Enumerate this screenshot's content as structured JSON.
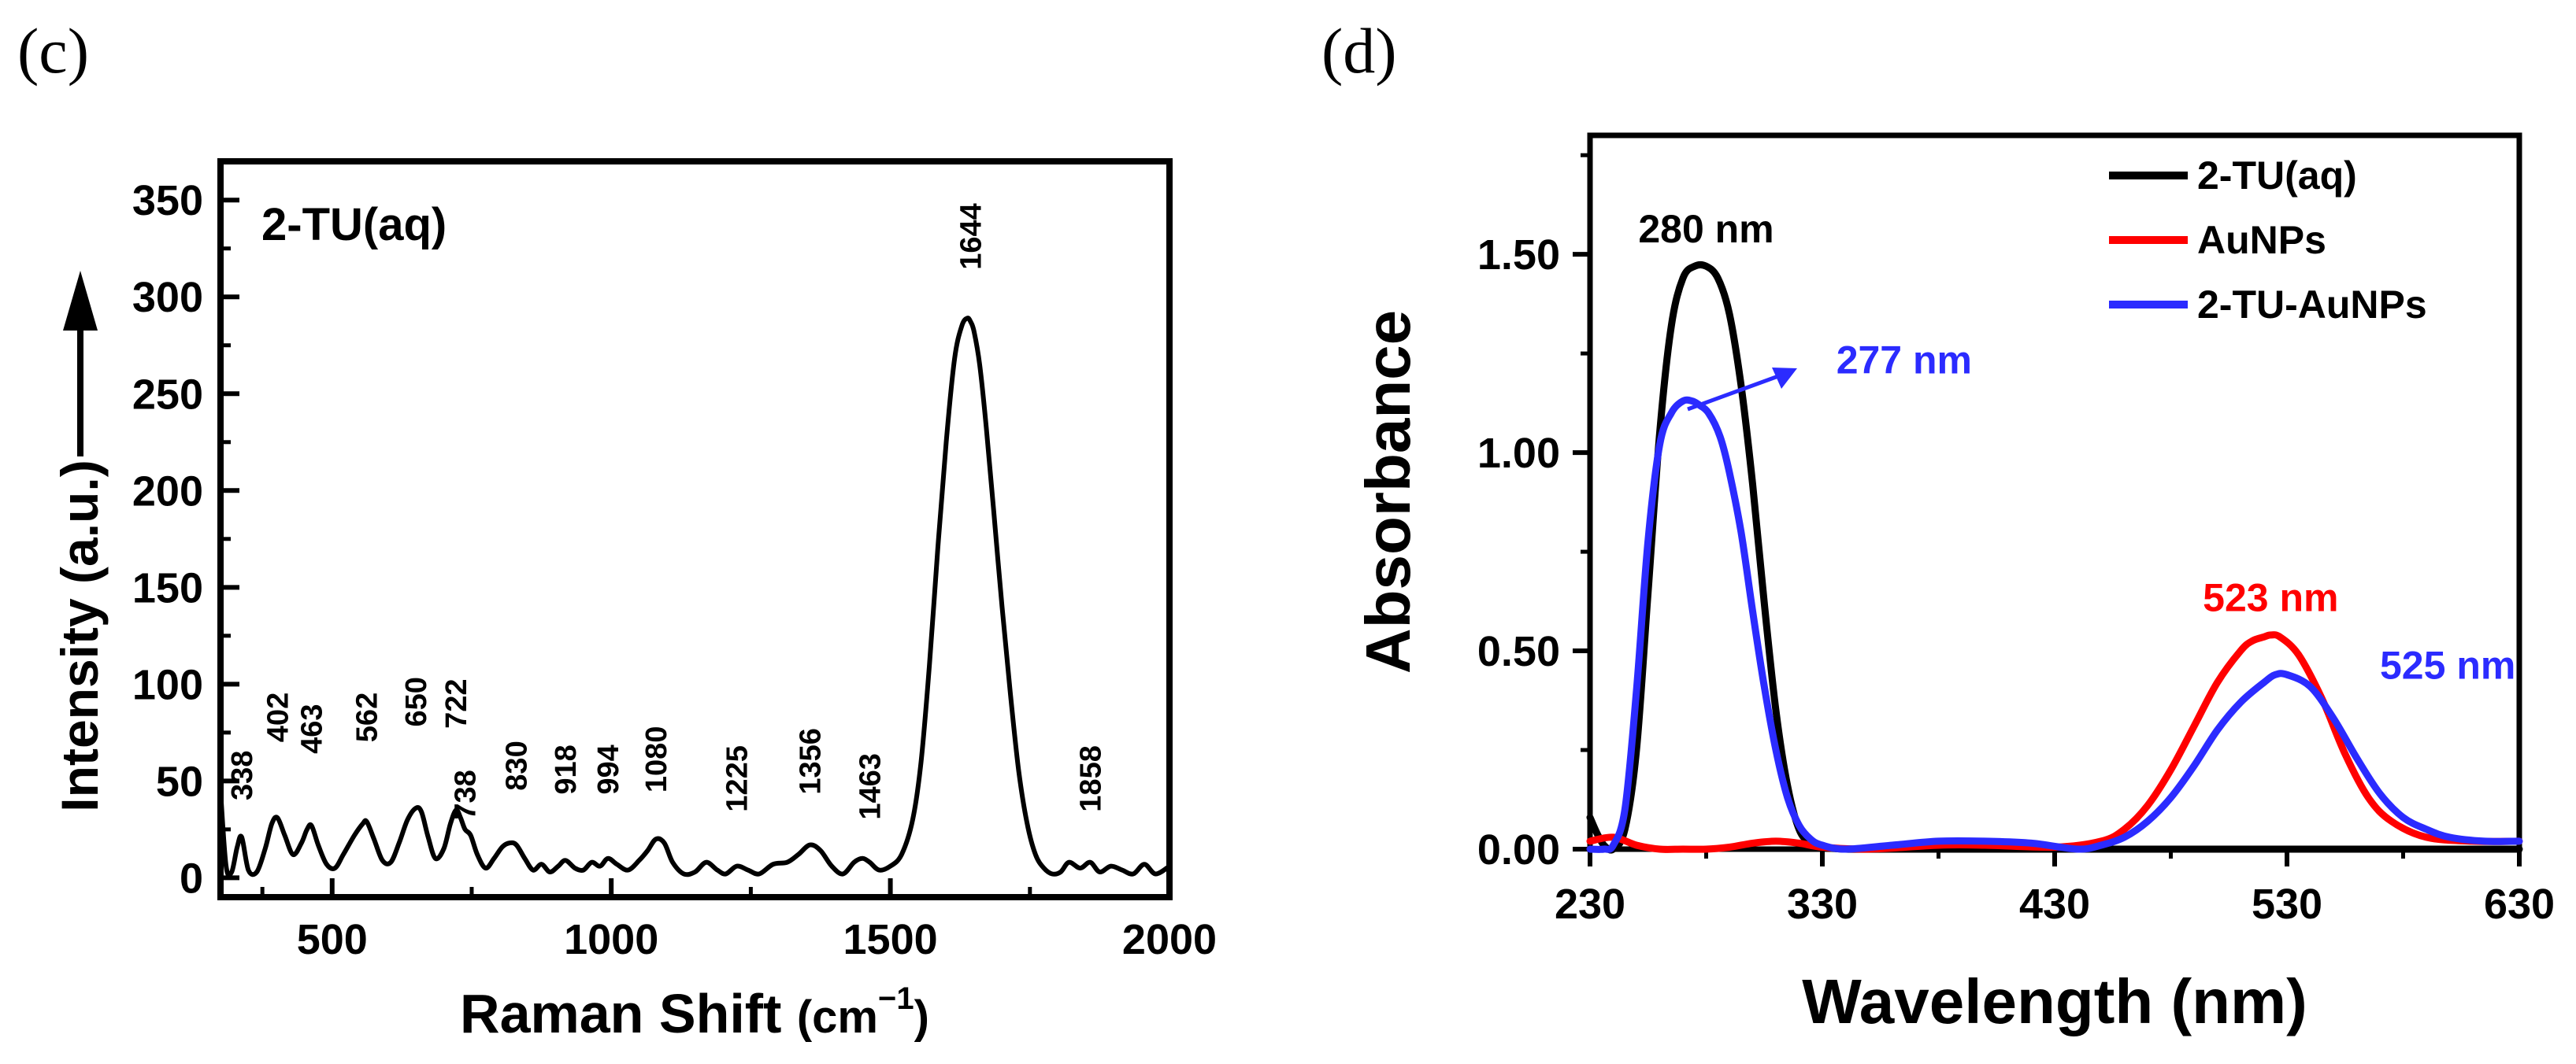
{
  "panels": {
    "c": {
      "label": "(c)"
    },
    "d": {
      "label": "(d)"
    }
  },
  "colors": {
    "axis": "#000000",
    "two_tu": "#000000",
    "aunps": "#ff0000",
    "two_tu_aunps": "#2b2bff"
  },
  "chart_data": [
    {
      "panel": "c",
      "type": "line",
      "title": "2-TU(aq)",
      "xlabel": "Raman Shift (cm−1)",
      "xlabel_main": "Raman Shift ",
      "xlabel_unit": "(cm",
      "xlabel_sup": "−1",
      "xlabel_close": ")",
      "ylabel": "Intensity (a.u.)",
      "xlim": [
        300,
        2000
      ],
      "ylim": [
        -10,
        370
      ],
      "xticks": [
        500,
        1000,
        1500,
        2000
      ],
      "yticks": [
        0,
        50,
        100,
        150,
        200,
        250,
        300,
        350
      ],
      "grid": false,
      "series": [
        {
          "name": "2-TU(aq)",
          "color": "#000000",
          "x": [
            300,
            310,
            320,
            330,
            338,
            350,
            365,
            380,
            392,
            402,
            415,
            430,
            445,
            455,
            463,
            475,
            490,
            505,
            520,
            540,
            555,
            562,
            575,
            590,
            605,
            620,
            635,
            650,
            660,
            672,
            685,
            700,
            712,
            722,
            730,
            738,
            748,
            760,
            775,
            790,
            805,
            818,
            830,
            845,
            860,
            875,
            890,
            905,
            918,
            935,
            950,
            965,
            980,
            994,
            1010,
            1030,
            1050,
            1065,
            1080,
            1095,
            1110,
            1130,
            1150,
            1170,
            1190,
            1205,
            1225,
            1245,
            1265,
            1290,
            1315,
            1335,
            1356,
            1375,
            1395,
            1415,
            1435,
            1450,
            1463,
            1480,
            1500,
            1520,
            1540,
            1555,
            1570,
            1585,
            1600,
            1615,
            1628,
            1638,
            1644,
            1650,
            1660,
            1672,
            1685,
            1700,
            1715,
            1730,
            1745,
            1760,
            1775,
            1790,
            1805,
            1820,
            1840,
            1858,
            1875,
            1895,
            1915,
            1935,
            1955,
            1975,
            2000
          ],
          "y": [
            45,
            6,
            3,
            16,
            21,
            4,
            3,
            15,
            28,
            31,
            22,
            12,
            18,
            25,
            27,
            17,
            7,
            5,
            12,
            22,
            28,
            29,
            20,
            9,
            8,
            18,
            30,
            36,
            34,
            21,
            10,
            15,
            28,
            35,
            31,
            25,
            22,
            12,
            5,
            10,
            16,
            18,
            17,
            10,
            4,
            7,
            3,
            6,
            9,
            5,
            4,
            8,
            6,
            10,
            7,
            4,
            9,
            14,
            20,
            18,
            8,
            2,
            3,
            8,
            4,
            2,
            6,
            4,
            2,
            7,
            8,
            12,
            17,
            14,
            6,
            2,
            8,
            10,
            8,
            4,
            6,
            12,
            30,
            60,
            110,
            170,
            225,
            268,
            285,
            289,
            287,
            282,
            265,
            232,
            190,
            140,
            95,
            55,
            28,
            12,
            5,
            2,
            3,
            8,
            5,
            8,
            3,
            6,
            4,
            2,
            7,
            2,
            6
          ]
        }
      ],
      "annotations": [
        {
          "text": "338",
          "x": 338,
          "y": 40
        },
        {
          "text": "402",
          "x": 402,
          "y": 70
        },
        {
          "text": "463",
          "x": 463,
          "y": 64
        },
        {
          "text": "562",
          "x": 562,
          "y": 70
        },
        {
          "text": "650",
          "x": 650,
          "y": 78
        },
        {
          "text": "722",
          "x": 722,
          "y": 77
        },
        {
          "text": "738",
          "x": 738,
          "y": 30
        },
        {
          "text": "830",
          "x": 830,
          "y": 45
        },
        {
          "text": "918",
          "x": 918,
          "y": 43
        },
        {
          "text": "994",
          "x": 994,
          "y": 43
        },
        {
          "text": "1080",
          "x": 1080,
          "y": 44
        },
        {
          "text": "1225",
          "x": 1225,
          "y": 34
        },
        {
          "text": "1356",
          "x": 1356,
          "y": 43
        },
        {
          "text": "1463",
          "x": 1463,
          "y": 30
        },
        {
          "text": "1644",
          "x": 1644,
          "y": 314
        },
        {
          "text": "1858",
          "x": 1858,
          "y": 34
        }
      ]
    },
    {
      "panel": "d",
      "type": "line",
      "title": "",
      "xlabel": "Wavelength (nm)",
      "ylabel": "Absorbance",
      "xlim": [
        230,
        630
      ],
      "ylim": [
        0,
        1.8
      ],
      "xticks": [
        230,
        330,
        430,
        530,
        630
      ],
      "yticks": [
        0.0,
        0.5,
        1.0,
        1.5
      ],
      "ytick_labels": [
        "0.00",
        "0.50",
        "1.00",
        "1.50"
      ],
      "grid": false,
      "legend": {
        "position": "top-right",
        "entries": [
          "2-TU(aq)",
          "AuNPs",
          "2-TU-AuNPs"
        ]
      },
      "series": [
        {
          "name": "2-TU(aq)",
          "color": "#000000",
          "x": [
            230,
            233,
            236,
            240,
            245,
            250,
            255,
            260,
            265,
            270,
            275,
            280,
            285,
            290,
            295,
            300,
            305,
            310,
            315,
            320,
            325,
            330,
            340,
            360,
            400,
            450,
            500,
            550,
            600,
            630
          ],
          "y": [
            0.08,
            0.04,
            0.01,
            0.0,
            0.05,
            0.25,
            0.65,
            1.05,
            1.32,
            1.44,
            1.47,
            1.47,
            1.44,
            1.35,
            1.17,
            0.92,
            0.62,
            0.35,
            0.16,
            0.05,
            0.015,
            0.005,
            0.0,
            0.0,
            0.0,
            0.0,
            0.0,
            0.0,
            0.0,
            0.0
          ]
        },
        {
          "name": "AuNPs",
          "color": "#ff0000",
          "x": [
            230,
            240,
            250,
            260,
            270,
            280,
            290,
            300,
            310,
            320,
            330,
            350,
            380,
            400,
            430,
            450,
            460,
            470,
            480,
            490,
            500,
            510,
            515,
            520,
            523,
            527,
            535,
            545,
            555,
            565,
            575,
            590,
            610,
            630
          ],
          "y": [
            0.02,
            0.03,
            0.01,
            0.0,
            0.0,
            0.0,
            0.005,
            0.015,
            0.02,
            0.015,
            0.005,
            0.0,
            0.01,
            0.01,
            0.005,
            0.02,
            0.05,
            0.11,
            0.2,
            0.31,
            0.42,
            0.5,
            0.525,
            0.535,
            0.54,
            0.535,
            0.49,
            0.38,
            0.24,
            0.13,
            0.07,
            0.03,
            0.02,
            0.02
          ]
        },
        {
          "name": "2-TU-AuNPs",
          "color": "#2b2bff",
          "x": [
            230,
            236,
            240,
            245,
            250,
            255,
            260,
            265,
            270,
            274,
            277,
            281,
            286,
            290,
            295,
            300,
            305,
            310,
            315,
            320,
            325,
            330,
            340,
            360,
            380,
            400,
            420,
            440,
            450,
            460,
            470,
            480,
            490,
            500,
            510,
            520,
            525,
            530,
            540,
            550,
            560,
            570,
            580,
            590,
            600,
            615,
            630
          ],
          "y": [
            0.0,
            0.0,
            0.01,
            0.1,
            0.4,
            0.78,
            1.02,
            1.1,
            1.13,
            1.13,
            1.12,
            1.1,
            1.04,
            0.95,
            0.8,
            0.6,
            0.41,
            0.25,
            0.13,
            0.06,
            0.025,
            0.01,
            0.0,
            0.01,
            0.02,
            0.02,
            0.015,
            0.0,
            0.01,
            0.03,
            0.07,
            0.13,
            0.21,
            0.3,
            0.37,
            0.42,
            0.44,
            0.44,
            0.41,
            0.33,
            0.23,
            0.14,
            0.08,
            0.05,
            0.03,
            0.02,
            0.02
          ]
        }
      ],
      "annotations": [
        {
          "text": "280 nm",
          "x": 280,
          "y": 1.53,
          "color": "#000000"
        },
        {
          "text": "277 nm",
          "x": 336,
          "y": 1.2,
          "color": "#2b2bff"
        },
        {
          "text": "523 nm",
          "x": 523,
          "y": 0.6,
          "color": "#ff0000"
        },
        {
          "text": "525 nm",
          "x": 570,
          "y": 0.43,
          "color": "#2b2bff"
        }
      ]
    }
  ]
}
